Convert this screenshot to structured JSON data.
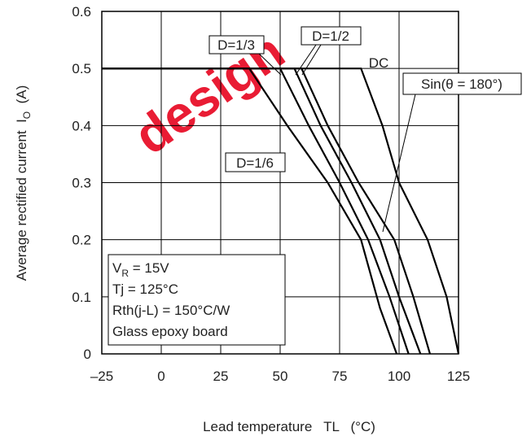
{
  "chart_data": {
    "type": "line",
    "xlabel": "Lead temperature   TL   (°C)",
    "ylabel": [
      "Average rectified current  I",
      "O",
      "  (A)"
    ],
    "xlim": [
      -25,
      125
    ],
    "ylim": [
      0,
      0.6
    ],
    "xticks": [
      {
        "value": -25,
        "label": "–25"
      },
      0,
      25,
      50,
      75,
      100,
      125
    ],
    "yticks": [
      0,
      0.1,
      0.2,
      0.3,
      0.4,
      0.5,
      0.6
    ],
    "grid": true,
    "series": [
      {
        "name": "D=1/6",
        "color": "#000000",
        "x": [
          -25,
          37,
          53,
          70,
          84,
          92,
          99
        ],
        "values": [
          0.5,
          0.5,
          0.4,
          0.3,
          0.2,
          0.08,
          0
        ]
      },
      {
        "name": "D=1/3",
        "color": "#000000",
        "x": [
          -25,
          50,
          62,
          75,
          87,
          96,
          104
        ],
        "values": [
          0.5,
          0.5,
          0.4,
          0.3,
          0.2,
          0.1,
          0
        ]
      },
      {
        "name": "D=1/2",
        "color": "#000000",
        "x": [
          -25,
          56,
          67,
          80,
          92,
          100,
          109
        ],
        "values": [
          0.5,
          0.5,
          0.4,
          0.3,
          0.2,
          0.1,
          0
        ]
      },
      {
        "name": "Sin(θ = 180°)",
        "color": "#000000",
        "x": [
          -25,
          59,
          70,
          83,
          98,
          106,
          113
        ],
        "values": [
          0.5,
          0.5,
          0.4,
          0.3,
          0.2,
          0.1,
          0
        ]
      },
      {
        "name": "DC",
        "color": "#000000",
        "x": [
          -25,
          84,
          93,
          100,
          112,
          120,
          125
        ],
        "values": [
          0.5,
          0.5,
          0.4,
          0.3,
          0.2,
          0.1,
          0
        ]
      }
    ],
    "conditions": [
      [
        "V",
        "R",
        " = 15V"
      ],
      "Tj = 125°C",
      "Rth(j-L) = 150°C/W",
      "Glass epoxy board"
    ],
    "watermark": "design"
  }
}
